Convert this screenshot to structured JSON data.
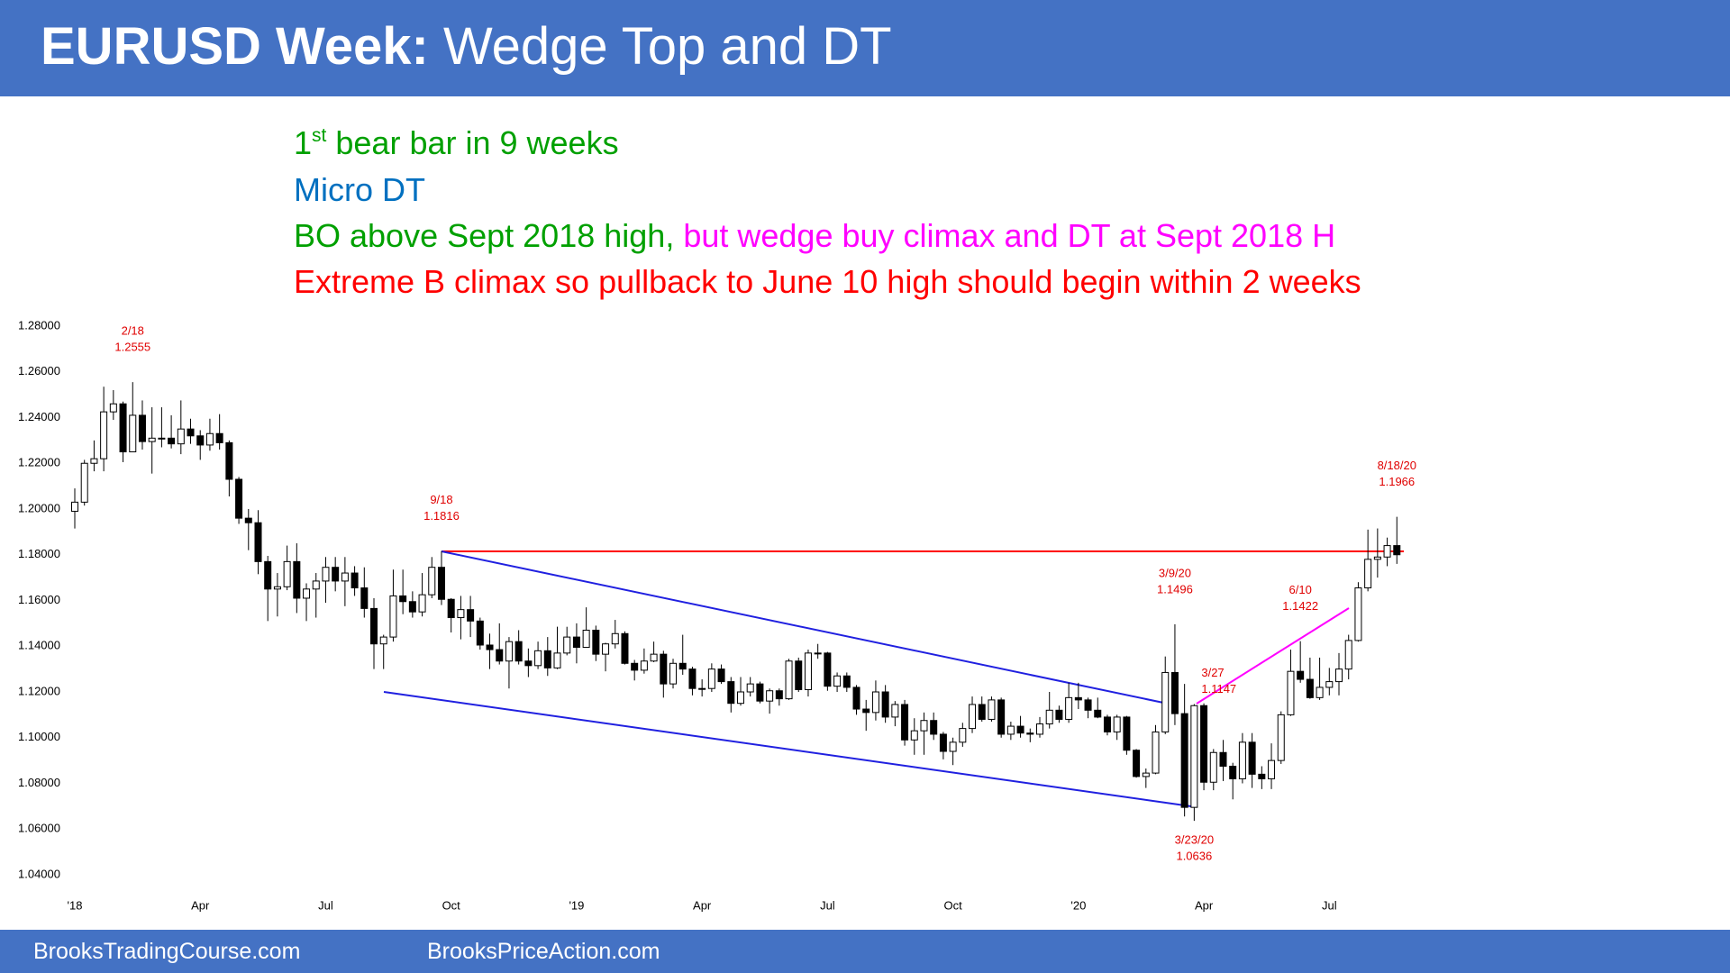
{
  "header": {
    "title_bold": "EURUSD Week:",
    "title_rest": "Wedge Top and DT"
  },
  "notes": {
    "line1": {
      "ordinal": "1",
      "suffix": "st",
      "text": "bear bar in 9 weeks"
    },
    "line2": "Micro DT",
    "line3": {
      "first": "BO above Sept 2018 high,",
      "second": "but wedge buy climax and DT at Sept 2018 H"
    },
    "line4": "Extreme B climax so pullback to June 10 high should begin within 2 weeks"
  },
  "chart_data": {
    "type": "candlestick",
    "categories": [
      "'18",
      null,
      null,
      null,
      null,
      null,
      null,
      null,
      null,
      null,
      null,
      null,
      null,
      "Apr",
      null,
      null,
      null,
      null,
      null,
      null,
      null,
      null,
      null,
      null,
      null,
      null,
      "Jul",
      null,
      null,
      null,
      null,
      null,
      null,
      null,
      null,
      null,
      null,
      null,
      null,
      "Oct",
      null,
      null,
      null,
      null,
      null,
      null,
      null,
      null,
      null,
      null,
      null,
      null,
      "'19",
      null,
      null,
      null,
      null,
      null,
      null,
      null,
      null,
      null,
      null,
      null,
      null,
      "Apr",
      null,
      null,
      null,
      null,
      null,
      null,
      null,
      null,
      null,
      null,
      null,
      null,
      "Jul",
      null,
      null,
      null,
      null,
      null,
      null,
      null,
      null,
      null,
      null,
      null,
      null,
      "Oct",
      null,
      null,
      null,
      null,
      null,
      null,
      null,
      null,
      null,
      null,
      null,
      null,
      "'20",
      null,
      null,
      null,
      null,
      null,
      null,
      null,
      null,
      null,
      null,
      null,
      null,
      "Apr",
      null,
      null,
      null,
      null,
      null,
      null,
      null,
      null,
      null,
      null,
      null,
      null,
      "Jul",
      null,
      null,
      null,
      null,
      null,
      null,
      null
    ],
    "open": [
      1.199,
      1.203,
      1.22,
      1.222,
      1.2425,
      1.246,
      1.225,
      1.241,
      1.2295,
      1.231,
      1.231,
      1.2285,
      1.235,
      1.232,
      1.228,
      1.233,
      1.229,
      1.213,
      1.196,
      1.194,
      1.177,
      1.165,
      1.166,
      1.177,
      1.161,
      1.165,
      1.1685,
      1.1745,
      1.1685,
      1.172,
      1.1655,
      1.1565,
      1.141,
      1.144,
      1.162,
      1.1595,
      1.155,
      1.1625,
      1.1745,
      1.1605,
      1.1525,
      1.156,
      1.151,
      1.1405,
      1.1385,
      1.1335,
      1.142,
      1.1335,
      1.1315,
      1.138,
      1.1305,
      1.137,
      1.144,
      1.1395,
      1.147,
      1.1365,
      1.141,
      1.1455,
      1.1325,
      1.1295,
      1.1335,
      1.1365,
      1.1235,
      1.1325,
      1.13,
      1.1215,
      1.1215,
      1.13,
      1.1245,
      1.115,
      1.12,
      1.1235,
      1.116,
      1.1205,
      1.117,
      1.1335,
      1.121,
      1.137,
      1.137,
      1.1225,
      1.127,
      1.122,
      1.1125,
      1.111,
      1.12,
      1.109,
      1.1145,
      1.099,
      1.103,
      1.1075,
      1.1015,
      1.094,
      1.098,
      1.104,
      1.1145,
      1.108,
      1.1165,
      1.1015,
      1.105,
      1.102,
      1.1015,
      1.106,
      1.112,
      1.108,
      1.1175,
      1.1165,
      1.112,
      1.109,
      1.1025,
      1.109,
      1.0945,
      1.083,
      1.0845,
      1.1025,
      1.1285,
      1.1105,
      1.0695,
      1.114,
      1.0805,
      1.0935,
      1.0875,
      1.082,
      1.098,
      1.084,
      1.082,
      1.09,
      1.11,
      1.129,
      1.1255,
      1.1175,
      1.122,
      1.1245,
      1.13,
      1.1425,
      1.1655,
      1.178,
      1.179,
      1.184
    ],
    "high": [
      1.209,
      1.2215,
      1.23,
      1.2535,
      1.252,
      1.247,
      1.2555,
      1.2475,
      1.2445,
      1.2445,
      1.241,
      1.2475,
      1.2395,
      1.2345,
      1.2395,
      1.2415,
      1.23,
      1.214,
      1.2,
      1.1995,
      1.1795,
      1.172,
      1.184,
      1.185,
      1.1675,
      1.172,
      1.179,
      1.179,
      1.179,
      1.175,
      1.1745,
      1.161,
      1.145,
      1.1735,
      1.1735,
      1.164,
      1.172,
      1.179,
      1.1816,
      1.161,
      1.162,
      1.162,
      1.1525,
      1.1455,
      1.15,
      1.144,
      1.147,
      1.139,
      1.142,
      1.144,
      1.1485,
      1.1485,
      1.15,
      1.157,
      1.149,
      1.1415,
      1.1515,
      1.1465,
      1.134,
      1.139,
      1.142,
      1.138,
      1.1345,
      1.145,
      1.131,
      1.1255,
      1.1325,
      1.132,
      1.1265,
      1.1265,
      1.1265,
      1.1245,
      1.1215,
      1.1215,
      1.1345,
      1.135,
      1.1385,
      1.141,
      1.1375,
      1.1285,
      1.1285,
      1.123,
      1.1165,
      1.125,
      1.123,
      1.116,
      1.1165,
      1.1085,
      1.111,
      1.111,
      1.1025,
      1.1,
      1.1065,
      1.118,
      1.118,
      1.118,
      1.1175,
      1.107,
      1.1095,
      1.104,
      1.109,
      1.12,
      1.114,
      1.124,
      1.124,
      1.1175,
      1.1175,
      1.11,
      1.11,
      1.1095,
      1.095,
      1.0865,
      1.1055,
      1.1355,
      1.1496,
      1.1235,
      1.1147,
      1.115,
      1.095,
      1.099,
      1.089,
      1.102,
      1.102,
      1.0875,
      1.0975,
      1.1115,
      1.1385,
      1.1422,
      1.135,
      1.135,
      1.1305,
      1.137,
      1.145,
      1.168,
      1.191,
      1.1915,
      1.1875,
      1.1966
    ],
    "low": [
      1.1915,
      1.2015,
      1.2165,
      1.2165,
      1.239,
      1.2205,
      1.225,
      1.226,
      1.2155,
      1.227,
      1.2265,
      1.224,
      1.2285,
      1.2215,
      1.2255,
      1.226,
      1.2055,
      1.1935,
      1.182,
      1.1715,
      1.151,
      1.153,
      1.1645,
      1.1545,
      1.151,
      1.1525,
      1.159,
      1.164,
      1.1575,
      1.162,
      1.1525,
      1.13,
      1.13,
      1.142,
      1.154,
      1.1525,
      1.153,
      1.161,
      1.158,
      1.146,
      1.143,
      1.144,
      1.1385,
      1.13,
      1.132,
      1.1215,
      1.132,
      1.1265,
      1.13,
      1.127,
      1.13,
      1.136,
      1.1325,
      1.1395,
      1.1335,
      1.129,
      1.139,
      1.132,
      1.125,
      1.128,
      1.133,
      1.1175,
      1.1215,
      1.1275,
      1.1185,
      1.118,
      1.12,
      1.1235,
      1.111,
      1.114,
      1.118,
      1.115,
      1.1105,
      1.114,
      1.1165,
      1.12,
      1.118,
      1.1345,
      1.1205,
      1.12,
      1.12,
      1.11,
      1.103,
      1.1075,
      1.1065,
      1.105,
      1.0965,
      1.0925,
      1.0925,
      1.099,
      1.0905,
      1.088,
      1.096,
      1.102,
      1.107,
      1.107,
      1.1,
      1.099,
      1.1,
      1.098,
      1.1,
      1.104,
      1.1065,
      1.1065,
      1.1125,
      1.1085,
      1.1085,
      1.101,
      1.099,
      1.0925,
      1.0825,
      1.078,
      1.084,
      1.1015,
      1.1055,
      1.0655,
      1.0636,
      1.077,
      1.077,
      1.081,
      1.073,
      1.08,
      1.078,
      1.0775,
      1.0775,
      1.0885,
      1.1095,
      1.124,
      1.117,
      1.1165,
      1.1185,
      1.1185,
      1.1255,
      1.142,
      1.164,
      1.17,
      1.175,
      1.176
    ],
    "close": [
      1.203,
      1.22,
      1.222,
      1.2425,
      1.246,
      1.225,
      1.241,
      1.2295,
      1.231,
      1.231,
      1.2285,
      1.235,
      1.232,
      1.228,
      1.233,
      1.229,
      1.213,
      1.196,
      1.194,
      1.177,
      1.165,
      1.166,
      1.177,
      1.161,
      1.165,
      1.1685,
      1.1745,
      1.1685,
      1.172,
      1.1655,
      1.1565,
      1.141,
      1.144,
      1.162,
      1.1595,
      1.155,
      1.1625,
      1.1745,
      1.1605,
      1.1525,
      1.156,
      1.151,
      1.1405,
      1.1385,
      1.1335,
      1.142,
      1.1335,
      1.1315,
      1.138,
      1.1305,
      1.137,
      1.144,
      1.1395,
      1.147,
      1.1365,
      1.141,
      1.1455,
      1.1325,
      1.1295,
      1.1335,
      1.1365,
      1.1235,
      1.1325,
      1.13,
      1.1215,
      1.1215,
      1.13,
      1.1245,
      1.115,
      1.12,
      1.1235,
      1.116,
      1.1205,
      1.117,
      1.1335,
      1.121,
      1.137,
      1.137,
      1.1225,
      1.127,
      1.122,
      1.1125,
      1.111,
      1.12,
      1.109,
      1.1145,
      1.099,
      1.103,
      1.1075,
      1.1015,
      1.094,
      1.098,
      1.104,
      1.1145,
      1.108,
      1.1165,
      1.1015,
      1.105,
      1.102,
      1.1015,
      1.106,
      1.112,
      1.108,
      1.1175,
      1.1165,
      1.112,
      1.109,
      1.1025,
      1.109,
      1.0945,
      1.083,
      1.0845,
      1.1025,
      1.1285,
      1.1105,
      1.0695,
      1.114,
      1.0805,
      1.0935,
      1.0875,
      1.082,
      1.098,
      1.084,
      1.082,
      1.09,
      1.11,
      1.129,
      1.1255,
      1.1175,
      1.122,
      1.1245,
      1.13,
      1.1425,
      1.1655,
      1.178,
      1.179,
      1.184,
      1.18
    ],
    "up_color": "#ffffff",
    "down_color": "#000000",
    "ylim": [
      1.03,
      1.29
    ],
    "yticks": [
      {
        "value": 1.04,
        "label": "1.04000"
      },
      {
        "value": 1.06,
        "label": "1.06000"
      },
      {
        "value": 1.08,
        "label": "1.08000"
      },
      {
        "value": 1.1,
        "label": "1.10000"
      },
      {
        "value": 1.12,
        "label": "1.12000"
      },
      {
        "value": 1.14,
        "label": "1.14000"
      },
      {
        "value": 1.16,
        "label": "1.16000"
      },
      {
        "value": 1.18,
        "label": "1.18000"
      },
      {
        "value": 1.2,
        "label": "1.20000"
      },
      {
        "value": 1.22,
        "label": "1.22000"
      },
      {
        "value": 1.24,
        "label": "1.24000"
      },
      {
        "value": 1.26,
        "label": "1.26000"
      },
      {
        "value": 1.28,
        "label": "1.28000"
      }
    ],
    "grid": false,
    "annotations": [
      {
        "date": "2/18",
        "price": 1.2555,
        "position": "above"
      },
      {
        "date": "9/18",
        "price": 1.1816,
        "position": "above"
      },
      {
        "date": "3/9/20",
        "price": 1.1496,
        "position": "above"
      },
      {
        "date": "3/27",
        "price": 1.1147,
        "position": "right"
      },
      {
        "date": "6/10",
        "price": 1.1422,
        "position": "above"
      },
      {
        "date": "8/18/20",
        "price": 1.1966,
        "position": "above"
      },
      {
        "date": "3/23/20",
        "price": 1.0636,
        "position": "below"
      }
    ]
  },
  "footer": {
    "left": "BrooksTradingCourse.com",
    "right": "BrooksPriceAction.com"
  }
}
